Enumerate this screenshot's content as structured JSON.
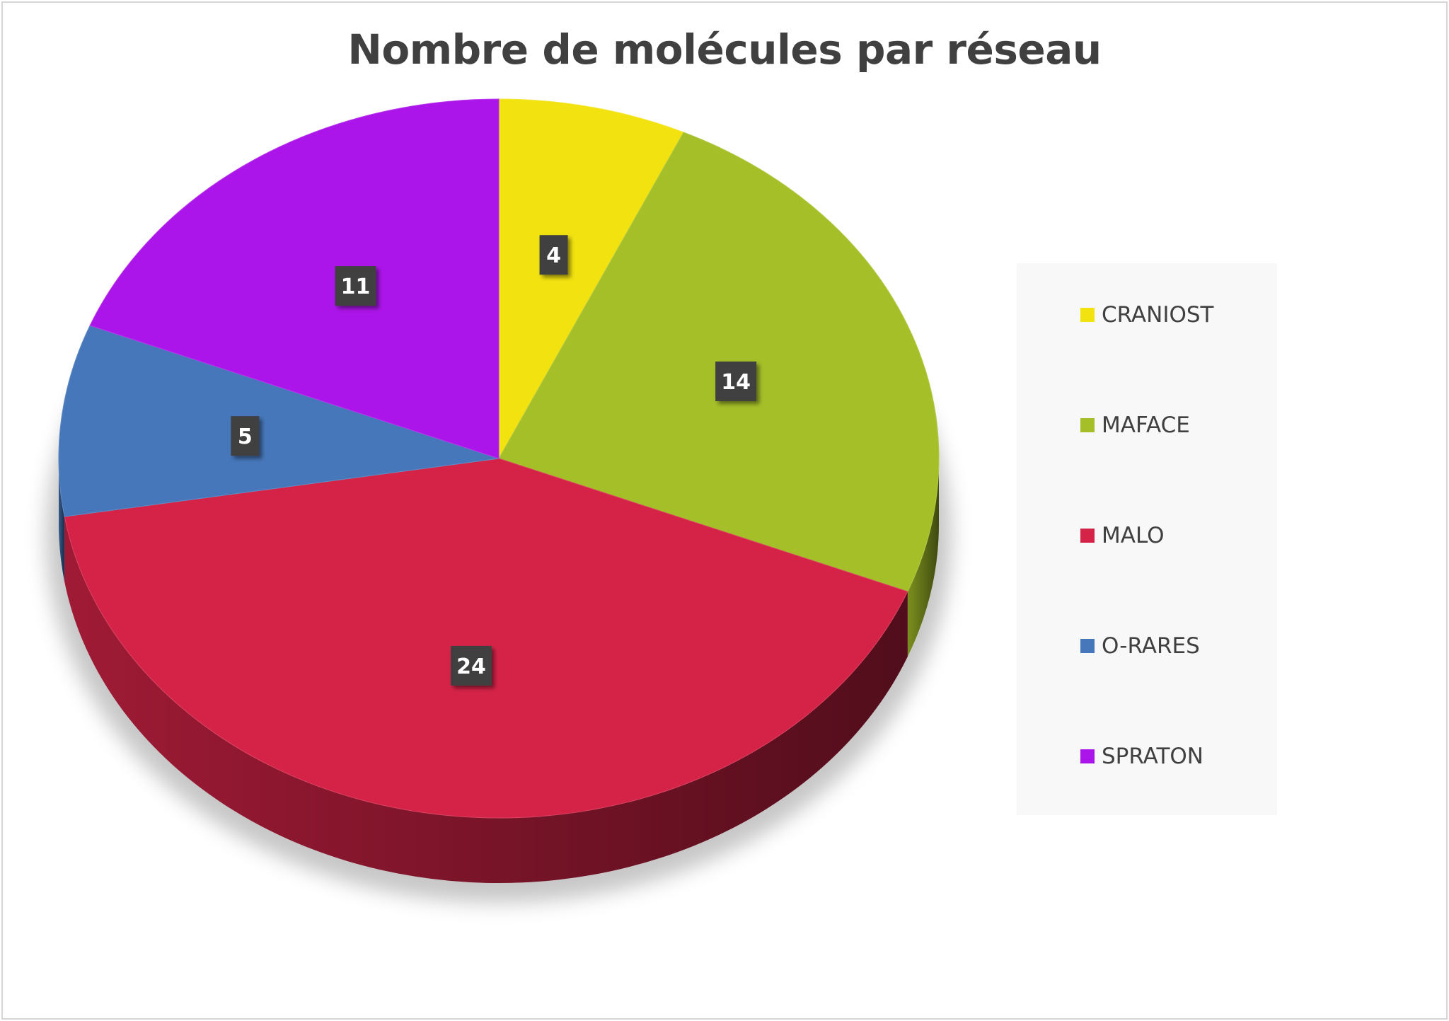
{
  "chart_data": {
    "type": "pie",
    "title": "Nombre de molécules par réseau",
    "categories": [
      "CRANIOST",
      "MAFACE",
      "MALO",
      "O-RARES",
      "SPRATON"
    ],
    "values": [
      4,
      14,
      24,
      5,
      11
    ],
    "colors": [
      "#f2e210",
      "#a4bf28",
      "#d52347",
      "#4677ba",
      "#ac15ea"
    ],
    "legend_position": "right",
    "three_d": true,
    "data_labels": true
  }
}
